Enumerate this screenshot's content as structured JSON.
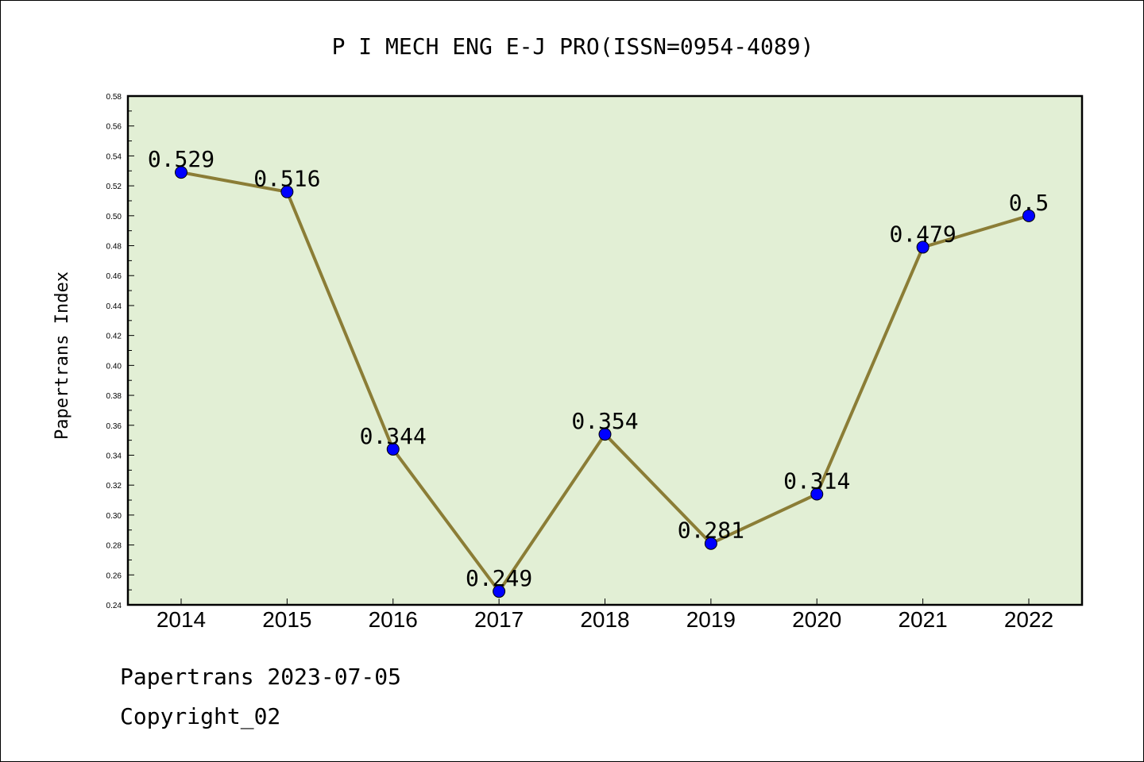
{
  "chart_data": {
    "type": "line",
    "title": "P I MECH ENG E-J PRO(ISSN=0954-4089)",
    "xlabel": "",
    "ylabel": "Papertrans Index",
    "ylim": [
      0.24,
      0.58
    ],
    "yticks": [
      "0.24",
      "0.26",
      "0.28",
      "0.30",
      "0.32",
      "0.34",
      "0.36",
      "0.38",
      "0.40",
      "0.42",
      "0.44",
      "0.46",
      "0.48",
      "0.50",
      "0.52",
      "0.54",
      "0.56",
      "0.58"
    ],
    "categories": [
      "2014",
      "2015",
      "2016",
      "2017",
      "2018",
      "2019",
      "2020",
      "2021",
      "2022"
    ],
    "series": [
      {
        "values": [
          0.529,
          0.516,
          0.344,
          0.249,
          0.354,
          0.281,
          0.314,
          0.479,
          0.5
        ],
        "labels": [
          "0.529",
          "0.516",
          "0.344",
          "0.249",
          "0.354",
          "0.281",
          "0.314",
          "0.479",
          "0.5"
        ]
      }
    ],
    "grid": false,
    "colors": {
      "plot_background": "#e2efd5",
      "line": "#8b7d36",
      "marker": "#0000ff"
    }
  },
  "footer": {
    "source": "Papertrans 2023-07-05",
    "copyright": "Copyright_02"
  }
}
